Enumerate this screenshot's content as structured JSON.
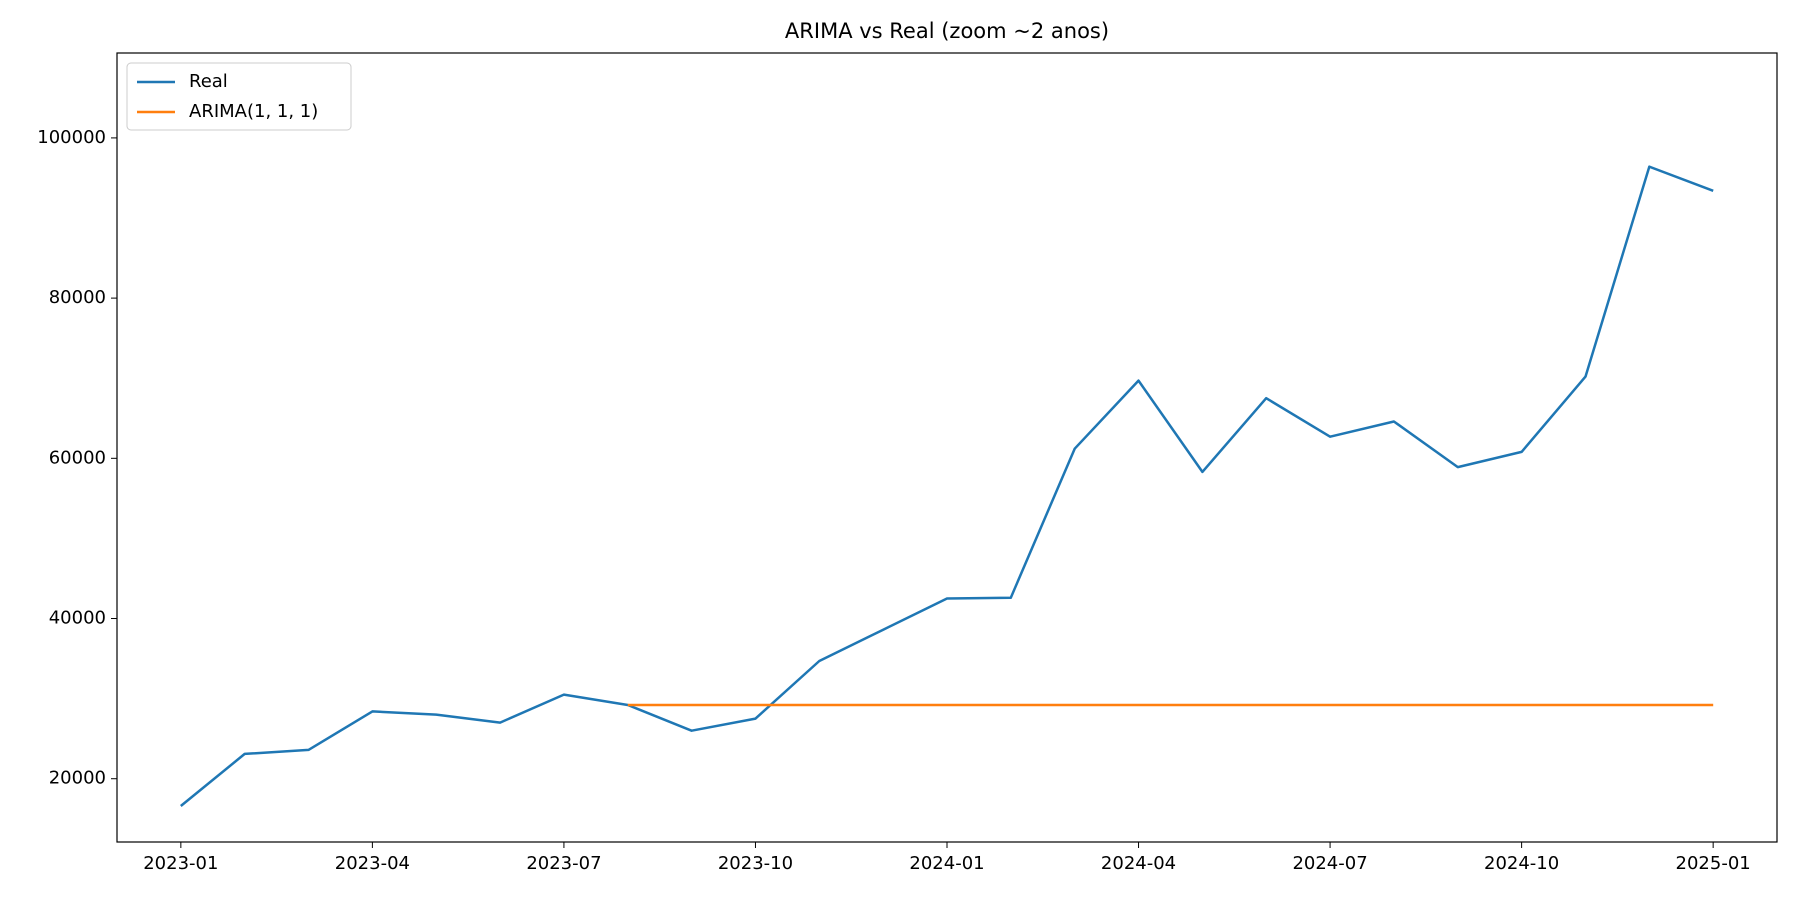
{
  "chart_data": {
    "type": "line",
    "title": "ARIMA vs Real (zoom ~2 anos)",
    "x": [
      "2023-01",
      "2023-02",
      "2023-03",
      "2023-04",
      "2023-05",
      "2023-06",
      "2023-07",
      "2023-08",
      "2023-09",
      "2023-10",
      "2023-11",
      "2023-12",
      "2024-01",
      "2024-02",
      "2024-03",
      "2024-04",
      "2024-05",
      "2024-06",
      "2024-07",
      "2024-08",
      "2024-09",
      "2024-10",
      "2024-11",
      "2024-12",
      "2025-01"
    ],
    "series": [
      {
        "name": "Real",
        "color": "#1f77b4",
        "values": [
          16600,
          23100,
          23600,
          28400,
          28000,
          27000,
          30500,
          29200,
          26000,
          27500,
          34700,
          38600,
          42500,
          42600,
          61200,
          69700,
          58300,
          67500,
          62700,
          64600,
          58900,
          60800,
          70200,
          96400,
          93400
        ]
      },
      {
        "name": "ARIMA(1, 1, 1)",
        "color": "#ff7f0e",
        "values": [
          null,
          null,
          null,
          null,
          null,
          null,
          null,
          29200,
          29200,
          29200,
          29200,
          29200,
          29200,
          29200,
          29200,
          29200,
          29200,
          29200,
          29200,
          29200,
          29200,
          29200,
          29200,
          29200,
          29200
        ]
      }
    ],
    "xlim": [
      "2022-12",
      "2025-02"
    ],
    "xticks": [
      "2023-01",
      "2023-04",
      "2023-07",
      "2023-10",
      "2024-01",
      "2024-04",
      "2024-07",
      "2024-10",
      "2025-01"
    ],
    "ylim": [
      12100,
      110600
    ],
    "yticks": [
      20000,
      40000,
      60000,
      80000,
      100000
    ],
    "legend": "upper-left"
  }
}
